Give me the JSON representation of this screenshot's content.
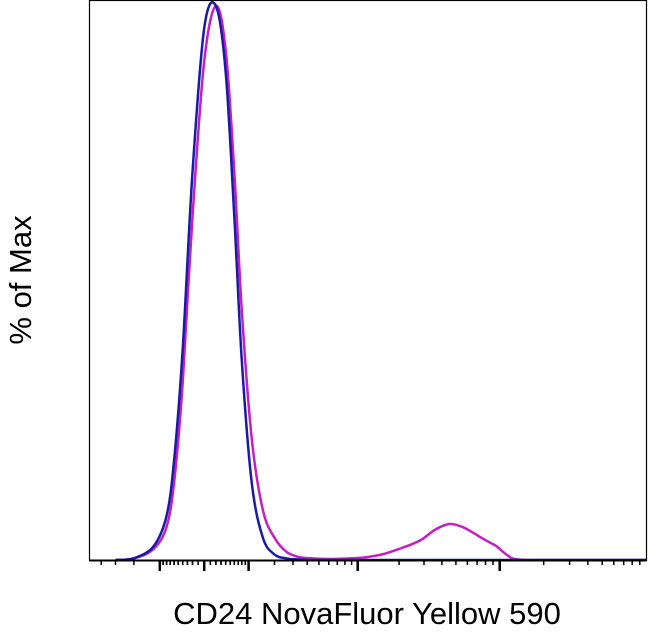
{
  "chart_data": {
    "type": "line",
    "title": "",
    "xlabel": "CD24 NovaFluor Yellow 590",
    "ylabel": "% of Max",
    "x_scale": "log",
    "xlim": [
      -500,
      100000
    ],
    "ylim": [
      0,
      100
    ],
    "grid": false,
    "legend": "none",
    "series": [
      {
        "color": "#c41fbf",
        "x": [
          -300,
          -200,
          -120,
          -80,
          -60,
          -40,
          -20,
          0,
          20,
          40,
          60,
          80,
          110,
          150,
          200,
          260,
          330,
          420,
          550,
          700,
          900,
          1150,
          1500,
          2000,
          2800,
          3600,
          4500,
          5500,
          6500,
          7500,
          8500,
          9500,
          10500,
          11500,
          12500,
          15000,
          20000,
          40000,
          100000
        ],
        "y": [
          0,
          0.3,
          2,
          6,
          14,
          32,
          62,
          90,
          100,
          92,
          70,
          45,
          22,
          9,
          4,
          1.5,
          0.6,
          0.3,
          0.2,
          0.2,
          0.3,
          0.5,
          1,
          2,
          3.5,
          5.5,
          6.5,
          6,
          5,
          4,
          3.2,
          2.5,
          1.5,
          0.7,
          0.2,
          0,
          0,
          0,
          0
        ]
      },
      {
        "color": "#1a1aa8",
        "x": [
          -300,
          -200,
          -120,
          -80,
          -60,
          -40,
          -20,
          0,
          20,
          40,
          60,
          80,
          110,
          150,
          200,
          260,
          330,
          420,
          550,
          1000,
          5000,
          20000,
          100000
        ],
        "y": [
          0,
          0.3,
          2.5,
          8,
          18,
          38,
          70,
          96,
          100,
          88,
          62,
          36,
          14,
          4,
          1,
          0.3,
          0.1,
          0,
          0,
          0,
          0,
          0,
          0
        ]
      }
    ]
  }
}
